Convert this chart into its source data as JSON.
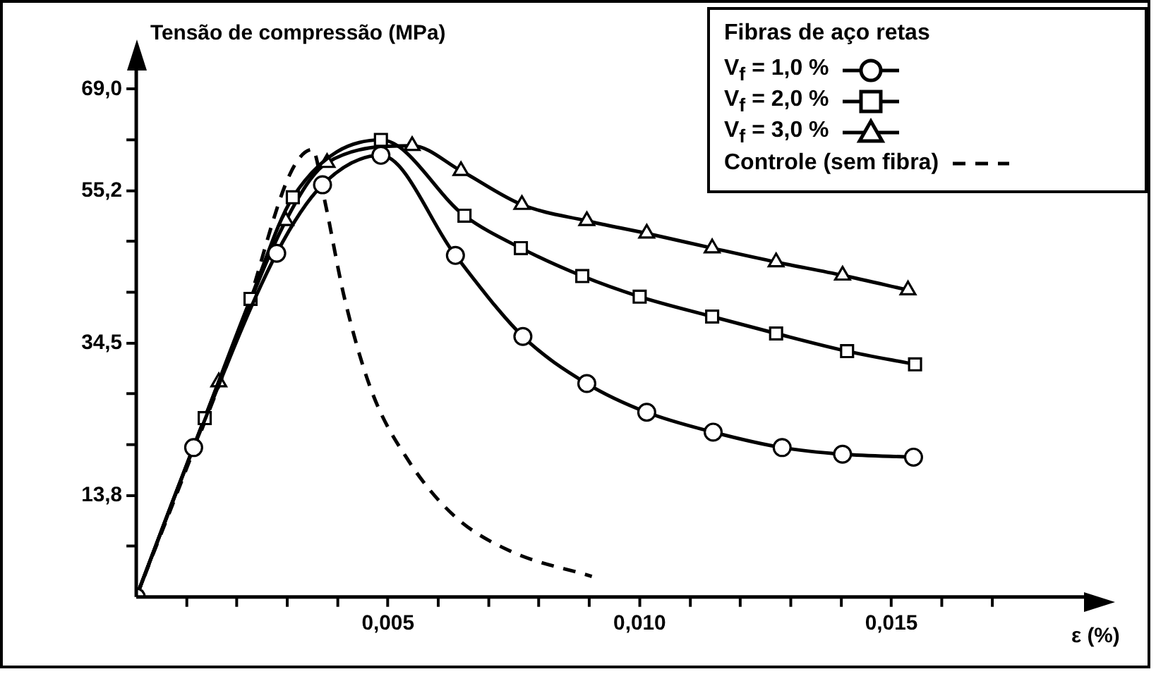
{
  "chart_data": {
    "type": "line",
    "xlabel": "ε (%)",
    "ylabel": "Tensão de compressão (MPa)",
    "legend_title": "Fibras de aço retas",
    "legend": "top right",
    "xlim": [
      0,
      0.019
    ],
    "ylim": [
      0,
      73.5
    ],
    "xticks": [
      {
        "value": 0.001,
        "label": null
      },
      {
        "value": 0.002,
        "label": null
      },
      {
        "value": 0.003,
        "label": null
      },
      {
        "value": 0.004,
        "label": null
      },
      {
        "value": 0.005,
        "label": "0,005"
      },
      {
        "value": 0.006,
        "label": null
      },
      {
        "value": 0.007,
        "label": null
      },
      {
        "value": 0.008,
        "label": null
      },
      {
        "value": 0.009,
        "label": null
      },
      {
        "value": 0.01,
        "label": "0,010"
      },
      {
        "value": 0.011,
        "label": null
      },
      {
        "value": 0.012,
        "label": null
      },
      {
        "value": 0.013,
        "label": null
      },
      {
        "value": 0.014,
        "label": null
      },
      {
        "value": 0.015,
        "label": "0,015"
      },
      {
        "value": 0.016,
        "label": null
      },
      {
        "value": 0.017,
        "label": null
      }
    ],
    "yticks": [
      {
        "value": 6.9,
        "label": null
      },
      {
        "value": 13.8,
        "label": "13,8"
      },
      {
        "value": 20.7,
        "label": null
      },
      {
        "value": 27.6,
        "label": null
      },
      {
        "value": 34.5,
        "label": "34,5"
      },
      {
        "value": 41.4,
        "label": null
      },
      {
        "value": 48.3,
        "label": null
      },
      {
        "value": 55.2,
        "label": "55,2"
      },
      {
        "value": 62.1,
        "label": null
      },
      {
        "value": 69,
        "label": "69,0"
      }
    ],
    "series": [
      {
        "name": "V$_{f}$ = 1,0 %",
        "color": "#000000",
        "marker": "circle",
        "line_style": "solid",
        "x": [
          0,
          0.00114,
          0.00279,
          0.0037,
          0.00486,
          0.00634,
          0.00768,
          0.00895,
          0.01014,
          0.01146,
          0.01283,
          0.01403,
          0.01544
        ],
        "values": [
          0,
          20.3,
          46.7,
          56.0,
          60.0,
          46.4,
          35.4,
          29.0,
          25.1,
          22.4,
          20.3,
          19.4,
          19.0
        ]
      },
      {
        "name": "V$_{f}$ = 2,0 %",
        "color": "#000000",
        "marker": "square",
        "line_style": "solid",
        "x": [
          0,
          0.00136,
          0.00227,
          0.00311,
          0.00486,
          0.00652,
          0.00764,
          0.00886,
          0.01,
          0.01144,
          0.01271,
          0.01412,
          0.01547
        ],
        "values": [
          0,
          24.3,
          40.5,
          54.3,
          62.1,
          51.8,
          47.4,
          43.6,
          40.8,
          38.1,
          35.8,
          33.4,
          31.6
        ]
      },
      {
        "name": "V$_{f}$ = 3,0 %",
        "color": "#000000",
        "marker": "triangle",
        "line_style": "solid",
        "x": [
          0,
          0.00164,
          0.00297,
          0.00379,
          0.00548,
          0.00645,
          0.00766,
          0.00895,
          0.01014,
          0.01144,
          0.01271,
          0.01403,
          0.01533
        ],
        "values": [
          0,
          29.2,
          51.1,
          59.0,
          61.3,
          57.9,
          53.3,
          51.1,
          49.4,
          47.4,
          45.5,
          43.7,
          41.7
        ]
      },
      {
        "name": "Controle (sem fibra)",
        "color": "#000000",
        "marker": "none",
        "line_style": "dashed",
        "x": [
          0,
          0.00095,
          0.00214,
          0.00305,
          0.0035,
          0.00373,
          0.00414,
          0.00468,
          0.00541,
          0.00632,
          0.00741,
          0.00905
        ],
        "values": [
          0,
          16.6,
          38.0,
          57.4,
          60.8,
          54.3,
          40.5,
          27.9,
          18.5,
          11.0,
          6.3,
          2.8
        ]
      }
    ]
  }
}
